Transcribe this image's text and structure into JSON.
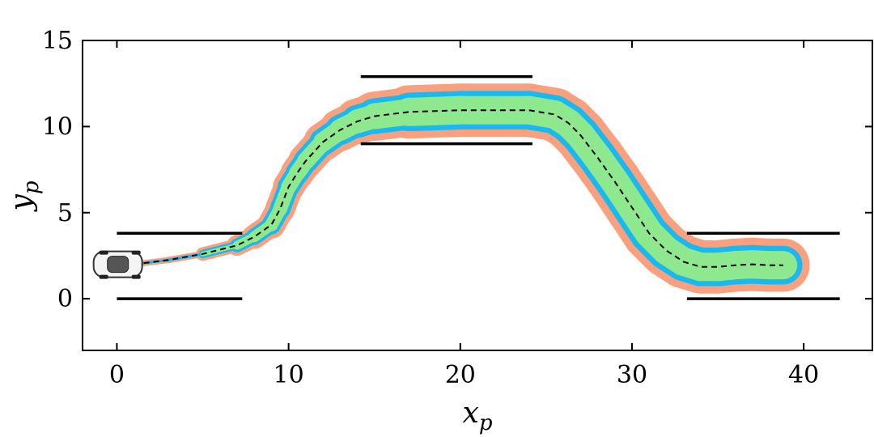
{
  "chart_data": {
    "type": "line",
    "title": "",
    "xlabel": "x",
    "xlabel_sub": "p",
    "ylabel": "y",
    "ylabel_sub": "p",
    "xlim": [
      -2,
      44
    ],
    "ylim": [
      -3,
      15
    ],
    "xticks": [
      0,
      10,
      20,
      30,
      40
    ],
    "yticks": [
      0,
      5,
      10,
      15
    ],
    "xtick_labels": [
      "0",
      "10",
      "20",
      "30",
      "40"
    ],
    "ytick_labels": [
      "0",
      "5",
      "10",
      "15"
    ],
    "grid": false,
    "colors": {
      "outer_band": "#f9a07f",
      "edge_band": "#1ab8f0",
      "inner_band": "#8ee98e",
      "path": "#000000",
      "walls": "#000000"
    },
    "path": {
      "x": [
        1,
        3,
        5,
        7,
        8,
        9,
        9.5,
        10,
        10.5,
        11,
        12,
        13,
        14,
        15,
        17,
        20,
        24,
        25.5,
        26.3,
        27,
        28,
        29,
        30,
        31,
        32,
        33,
        34,
        35,
        36,
        37,
        38,
        38.8
      ],
      "y": [
        2,
        2.25,
        2.6,
        3.1,
        3.6,
        4.3,
        5.2,
        6.5,
        7.3,
        8.0,
        9.1,
        9.8,
        10.3,
        10.6,
        10.85,
        10.95,
        10.95,
        10.7,
        10.2,
        9.5,
        8.2,
        6.8,
        5.3,
        3.8,
        2.8,
        2.15,
        1.85,
        1.85,
        1.95,
        2.0,
        1.95,
        1.95
      ]
    },
    "walls": [
      {
        "x": [
          0,
          7.3
        ],
        "y": [
          3.8,
          3.8
        ]
      },
      {
        "x": [
          0,
          7.3
        ],
        "y": [
          0,
          0
        ]
      },
      {
        "x": [
          14.2,
          24.2
        ],
        "y": [
          12.9,
          12.9
        ]
      },
      {
        "x": [
          14.2,
          24.2
        ],
        "y": [
          9.0,
          9.0
        ]
      },
      {
        "x": [
          33.2,
          42.1
        ],
        "y": [
          3.8,
          3.8
        ]
      },
      {
        "x": [
          33.2,
          42.1
        ],
        "y": [
          0,
          0
        ]
      }
    ],
    "vehicle": {
      "x": 0.2,
      "y": 2.0,
      "icon": "car-icon"
    }
  }
}
